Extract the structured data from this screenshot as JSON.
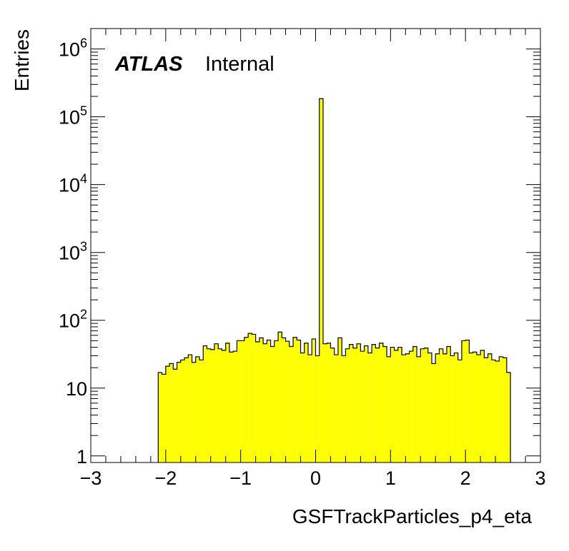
{
  "chart_data": {
    "type": "bar",
    "histogram": true,
    "log_y": true,
    "xlabel": "GSFTrackParticles_p4_eta",
    "ylabel": "Entries",
    "xlim": [
      -3,
      3
    ],
    "ylim": [
      0.8,
      2000000
    ],
    "bin_width": 0.05,
    "x_start": -2.1,
    "x_ticks": [
      "−3",
      "−2",
      "−1",
      "0",
      "1",
      "2",
      "3"
    ],
    "x_tick_values": [
      -3,
      -2,
      -1,
      0,
      1,
      2,
      3
    ],
    "y_ticks": [
      {
        "value": 1,
        "base": "1",
        "exp": ""
      },
      {
        "value": 10,
        "base": "10",
        "exp": ""
      },
      {
        "value": 100,
        "base": "10",
        "exp": "2"
      },
      {
        "value": 1000,
        "base": "10",
        "exp": "3"
      },
      {
        "value": 10000,
        "base": "10",
        "exp": "4"
      },
      {
        "value": 100000,
        "base": "10",
        "exp": "5"
      },
      {
        "value": 1000000,
        "base": "10",
        "exp": "6"
      }
    ],
    "fill_color": "#ffff00",
    "line_color": "#000000",
    "values": [
      17,
      16,
      21,
      23,
      19,
      24,
      26,
      28,
      31,
      24,
      29,
      26,
      42,
      38,
      37,
      45,
      38,
      36,
      46,
      34,
      35,
      50,
      50,
      56,
      64,
      62,
      48,
      55,
      45,
      51,
      41,
      50,
      67,
      55,
      49,
      41,
      56,
      51,
      33,
      46,
      31,
      53,
      30,
      185000,
      45,
      46,
      39,
      31,
      55,
      30,
      38,
      44,
      39,
      45,
      35,
      42,
      33,
      44,
      39,
      46,
      41,
      29,
      40,
      36,
      40,
      31,
      32,
      35,
      41,
      29,
      38,
      39,
      33,
      23,
      32,
      38,
      32,
      41,
      30,
      33,
      26,
      50,
      51,
      33,
      34,
      31,
      36,
      28,
      32,
      26,
      25,
      29,
      28,
      17
    ],
    "grid": false
  },
  "annotation": {
    "atlas": "ATLAS",
    "internal": "Internal"
  }
}
